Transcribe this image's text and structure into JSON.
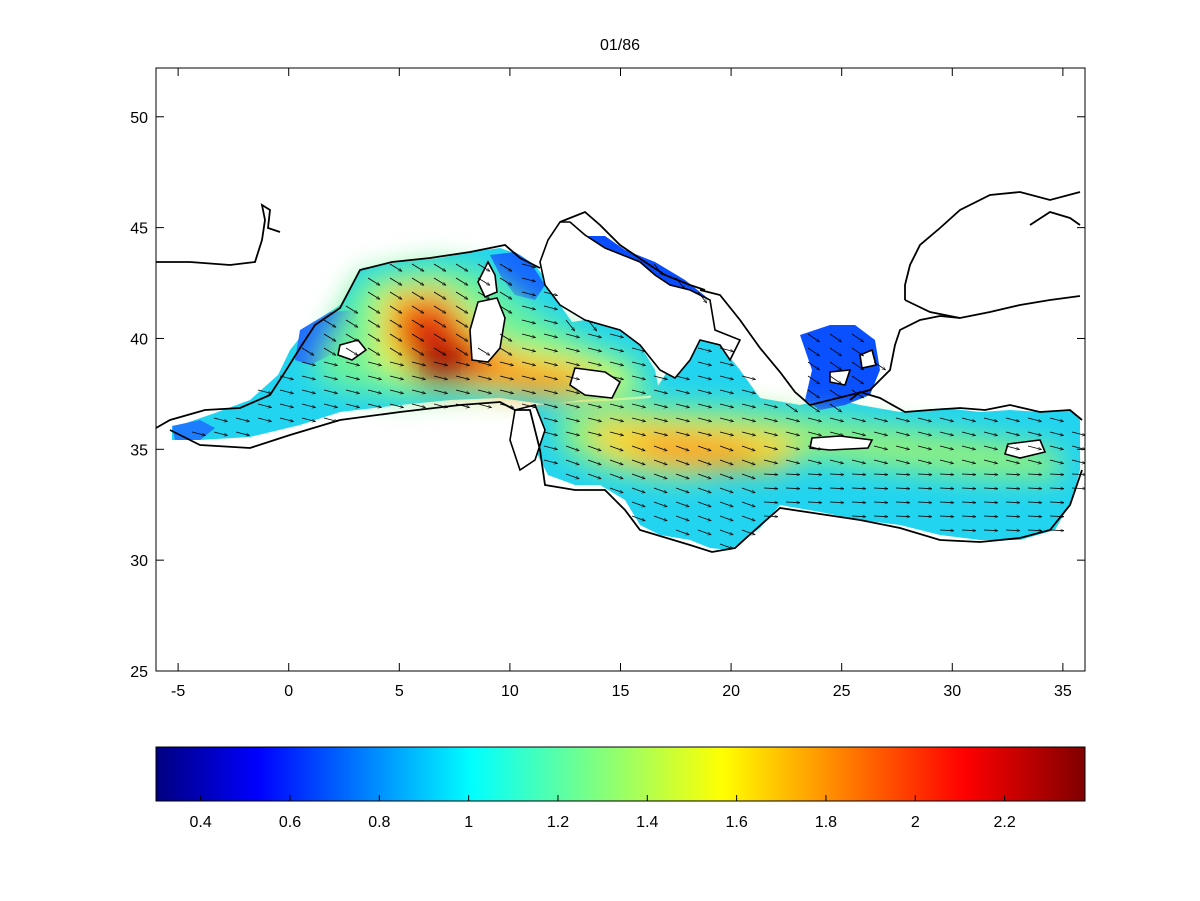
{
  "figure": {
    "title": "01/86"
  },
  "map": {
    "lon_range": [
      -6,
      36
    ],
    "lat_range": [
      25,
      52.2
    ],
    "x_ticks": [
      -5,
      0,
      5,
      10,
      15,
      20,
      25,
      30,
      35
    ],
    "y_ticks": [
      25,
      30,
      35,
      40,
      45,
      50
    ],
    "field": "wind speed (colour) with direction arrows",
    "colormap": "jet",
    "hotspots": [
      {
        "region": "Gulf of Lion / Sardinia",
        "lon": 7,
        "lat": 39,
        "value": 2.3
      },
      {
        "region": "Ionian Sea",
        "lon": 19,
        "lat": 34.7,
        "value": 1.75
      },
      {
        "region": "Sicily Channel",
        "lon": 11,
        "lat": 38,
        "value": 1.8
      }
    ]
  },
  "colorbar": {
    "range": [
      0.3,
      2.38
    ],
    "ticks": [
      0.4,
      0.6,
      0.8,
      1,
      1.2,
      1.4,
      1.6,
      1.8,
      2,
      2.2
    ],
    "tick_labels": [
      "0.4",
      "0.6",
      "0.8",
      "1",
      "1.2",
      "1.4",
      "1.6",
      "1.8",
      "2",
      "2.2"
    ]
  },
  "colors": {
    "axis": "#000000",
    "coast": "#000000",
    "background": "#ffffff"
  }
}
